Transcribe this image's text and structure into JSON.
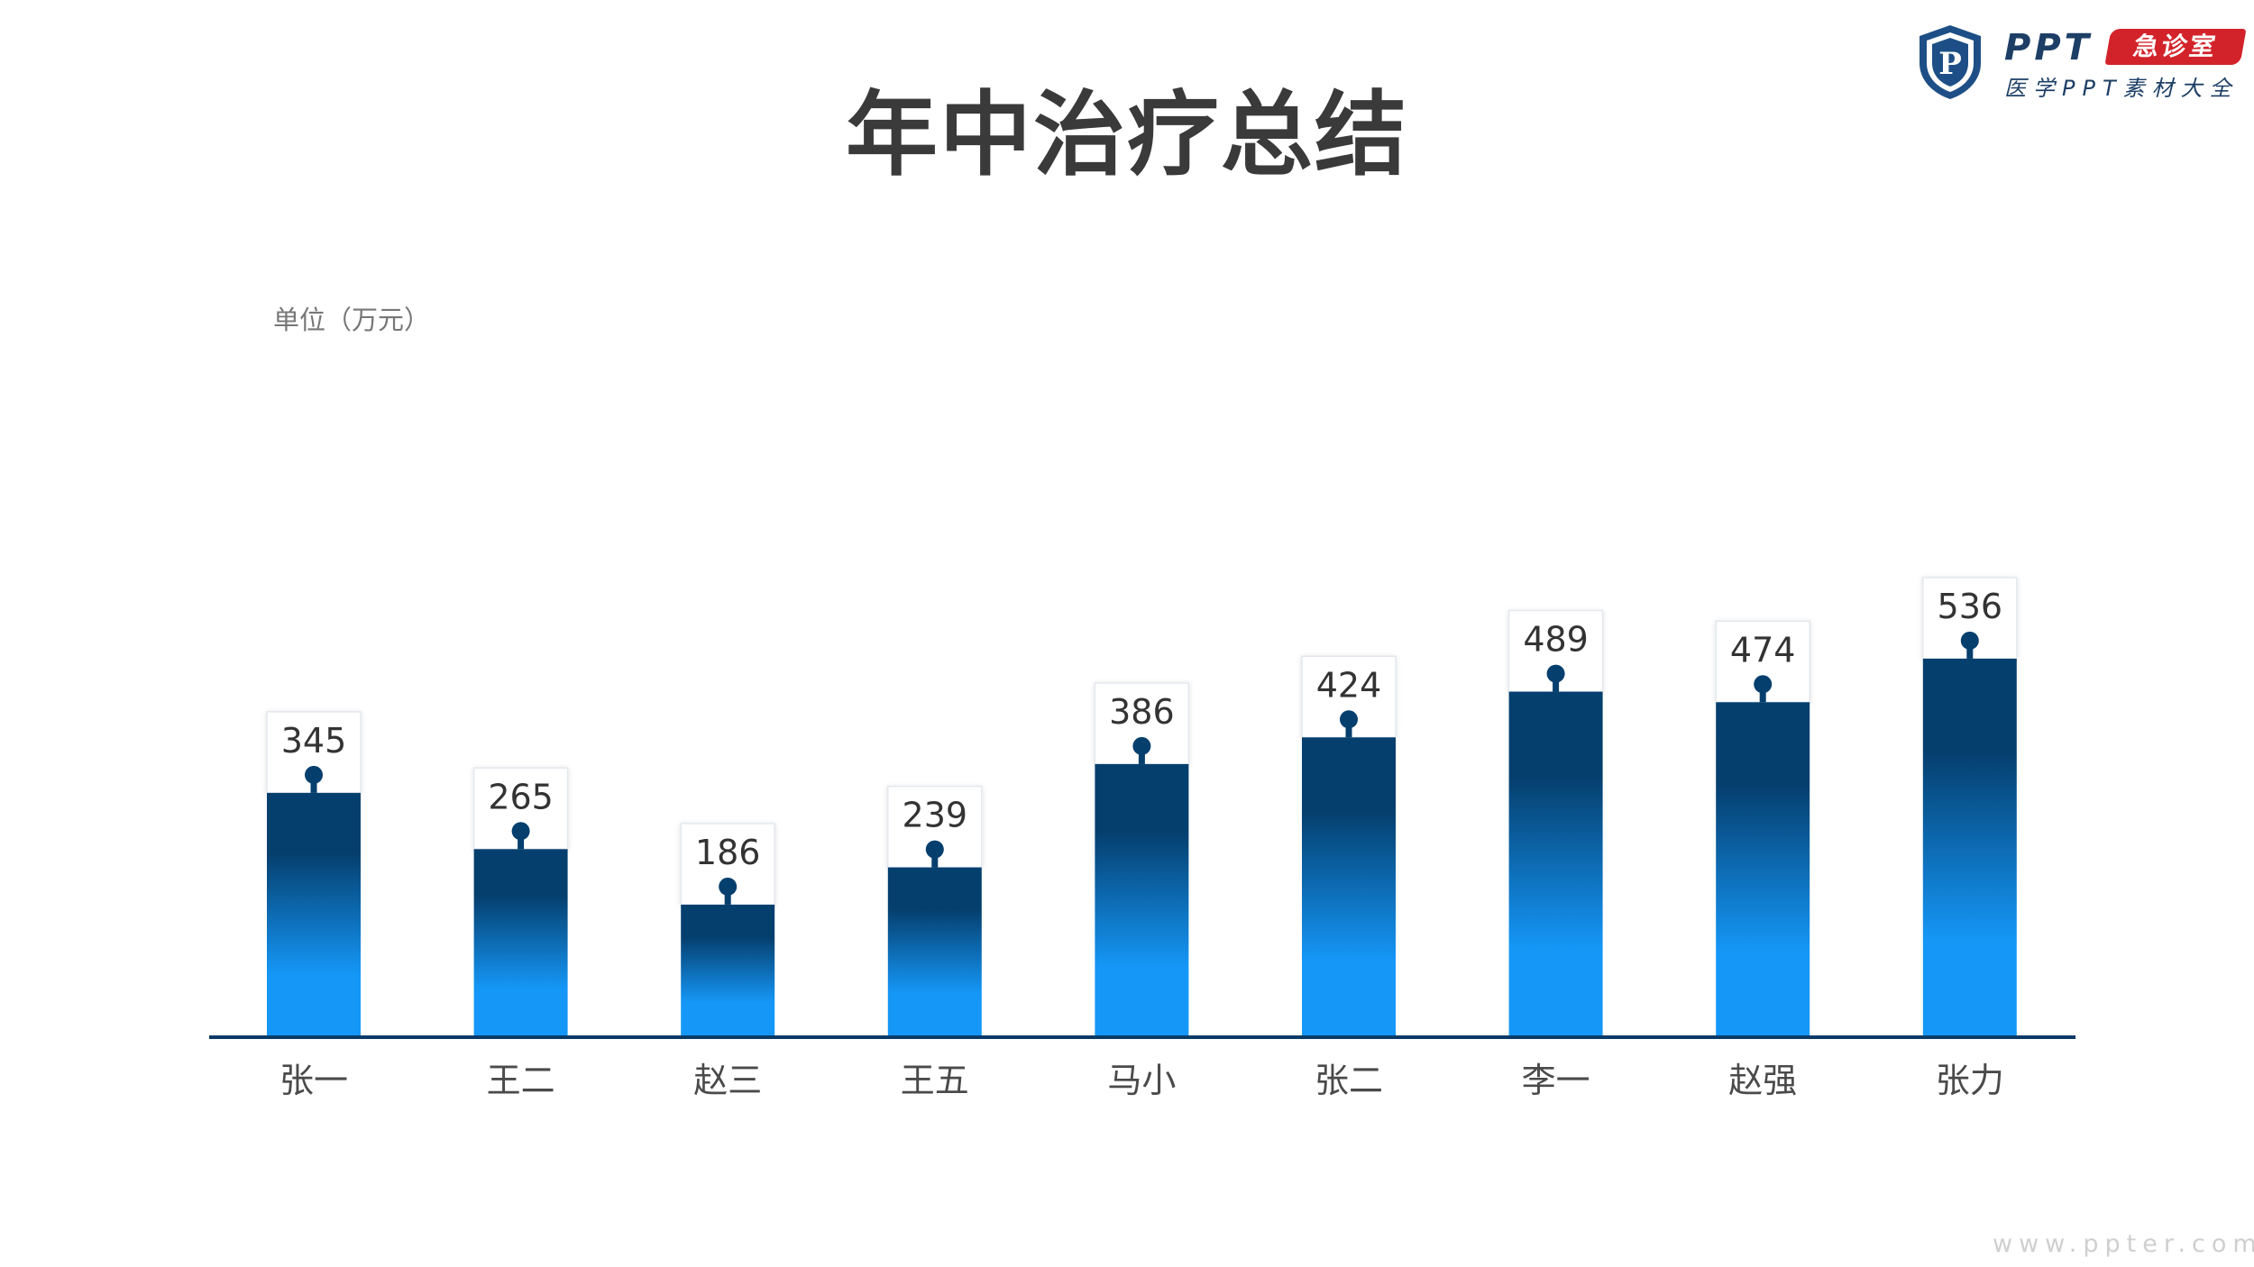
{
  "title": "年中治疗总结",
  "unit_label": "单位（万元）",
  "logo": {
    "main": "PPT",
    "tag": "急诊室",
    "subtitle": "医学PPT素材大全",
    "shield_letter": "P"
  },
  "watermark": "www.ppter.com",
  "colors": {
    "bar_top": "#053f6e",
    "bar_bottom": "#1597f7",
    "axis": "#0a3a66",
    "marker": "#053f6e",
    "title": "#3a3a3a"
  },
  "chart_data": {
    "type": "bar",
    "title": "年中治疗总结",
    "ylabel": "单位（万元）",
    "xlabel": "",
    "categories": [
      "张一",
      "王二",
      "赵三",
      "王五",
      "马小",
      "张二",
      "李一",
      "赵强",
      "张力"
    ],
    "values": [
      345,
      265,
      186,
      239,
      386,
      424,
      489,
      474,
      536
    ],
    "ylim": [
      0,
      600
    ],
    "grid": false,
    "legend": "none",
    "data_labels": true
  }
}
